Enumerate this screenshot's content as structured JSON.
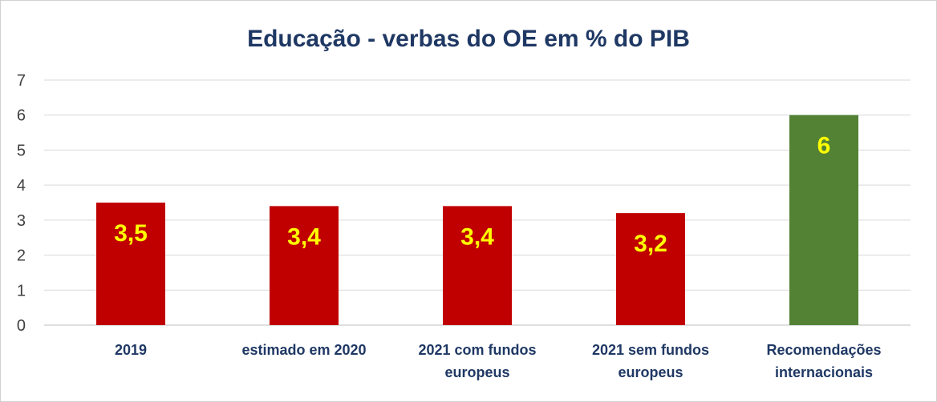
{
  "chart_data": {
    "type": "bar",
    "title": "Educação - verbas do OE em % do PIB",
    "categories": [
      [
        "2019"
      ],
      [
        "estimado em 2020"
      ],
      [
        "2021 com fundos",
        "europeus"
      ],
      [
        "2021 sem fundos",
        "europeus"
      ],
      [
        "Recomendações",
        "internacionais"
      ]
    ],
    "values": [
      3.5,
      3.4,
      3.4,
      3.2,
      6
    ],
    "data_labels": [
      "3,5",
      "3,4",
      "3,4",
      "3,2",
      "6"
    ],
    "bar_colors": [
      "#c00000",
      "#c00000",
      "#c00000",
      "#c00000",
      "#548235"
    ],
    "data_label_color": "#ffff00",
    "title_color": "#1f3864",
    "ylim": [
      0,
      7
    ],
    "yticks": [
      0,
      1,
      2,
      3,
      4,
      5,
      6,
      7
    ],
    "grid": true,
    "legend": "none",
    "xlabel": "",
    "ylabel": ""
  }
}
